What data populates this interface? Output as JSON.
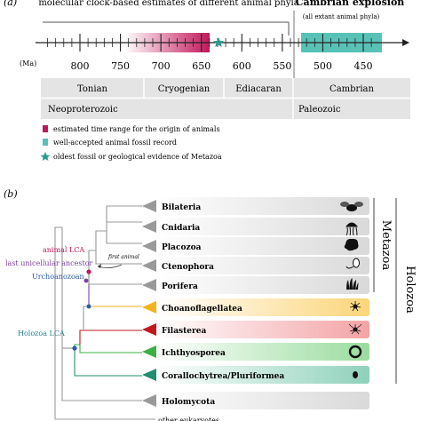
{
  "panel_a": {
    "letter": "(a)",
    "clock_caption": "molecular clock-based estimates of different animal phyla",
    "explosion_title": "Cambrian explosion",
    "explosion_sub": "(all extant animal phyla)",
    "ma_label": "(Ma)",
    "ticks": [
      "800",
      "750",
      "700",
      "650",
      "600",
      "550",
      "500",
      "450"
    ],
    "periods": [
      "Tonian",
      "Cryogenian",
      "Ediacaran",
      "Cambrian"
    ],
    "eras": [
      "Neoproterozoic",
      "Paleozoic"
    ],
    "legend": [
      {
        "text": "estimated time range for the origin of animals",
        "color": "#c2185b"
      },
      {
        "text": "well-accepted animal fossil record",
        "color": "#59c2b6"
      },
      {
        "text": "oldest fossil or geological evidence of Metazoa",
        "color": "#2a9d8f"
      }
    ]
  },
  "panel_b": {
    "letter": "(b)",
    "nodes": {
      "animal_lca": "animal LCA",
      "last_unicellular": "last unicellular ancestor",
      "urchoanozoan": "Urchoanozoan",
      "holozoa_lca": "Holozoa LCA",
      "first_animal": "first animal"
    },
    "taxa": [
      {
        "name": "Bilateria",
        "color": "#999999"
      },
      {
        "name": "Cnidaria",
        "color": "#999999"
      },
      {
        "name": "Placozoa",
        "color": "#999999"
      },
      {
        "name": "Ctenophora",
        "color": "#999999"
      },
      {
        "name": "Porifera",
        "color": "#999999"
      },
      {
        "name": "Choanoflagellatea",
        "color": "#f5b21c"
      },
      {
        "name": "Filasterea",
        "color": "#c0181f"
      },
      {
        "name": "Ichthyosporea",
        "color": "#3cb043"
      },
      {
        "name": "Corallochytrea/Pluriformea",
        "color": "#1f8f6f"
      },
      {
        "name": "Holomycota",
        "color": "#999999"
      },
      {
        "name": "other eukaryotes",
        "color": "#999999"
      }
    ],
    "metazoa": "Metazoa",
    "holozoa": "Holozoa"
  }
}
